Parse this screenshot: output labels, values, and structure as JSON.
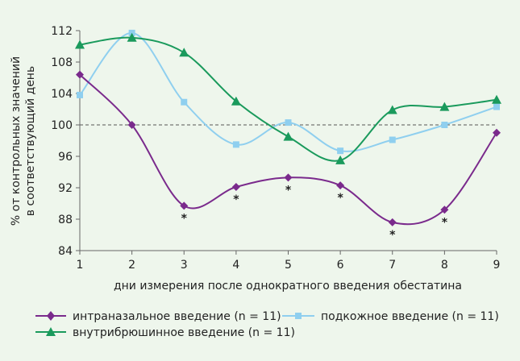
{
  "chart_data": {
    "type": "line",
    "xlabel": "дни измерения после однократного введения обестатина",
    "ylabel_line1": "% от контрольных значений",
    "ylabel_line2": "в соответствующий день",
    "x": [
      1,
      2,
      3,
      4,
      5,
      6,
      7,
      8,
      9
    ],
    "xlim": [
      1,
      9
    ],
    "ylim": [
      84,
      112
    ],
    "yticks": [
      84,
      88,
      92,
      96,
      100,
      104,
      108,
      112
    ],
    "reference_line": 100,
    "significance_marker": "*",
    "series": [
      {
        "name": "интраназальное введение (n = 11)",
        "color": "#7a2a8c",
        "marker": "diamond",
        "values": [
          106.4,
          100.0,
          89.7,
          92.1,
          93.3,
          92.3,
          87.6,
          89.2,
          99.0
        ],
        "significant": [
          false,
          false,
          true,
          true,
          true,
          true,
          true,
          true,
          false
        ]
      },
      {
        "name": "подкожное введение (n = 11)",
        "color": "#8fcfef",
        "marker": "square",
        "values": [
          103.8,
          111.7,
          102.9,
          97.5,
          100.3,
          96.7,
          98.1,
          100.0,
          102.3
        ],
        "significant": [
          false,
          false,
          false,
          false,
          false,
          false,
          false,
          false,
          false
        ]
      },
      {
        "name": "внутрибрюшинное введение (n = 11)",
        "color": "#1a9a5c",
        "marker": "triangle",
        "values": [
          110.2,
          111.1,
          109.2,
          103.0,
          98.5,
          95.5,
          101.9,
          102.3,
          103.2
        ],
        "significant": [
          false,
          false,
          false,
          false,
          false,
          false,
          false,
          false,
          false
        ]
      }
    ],
    "legend_position": "bottom"
  }
}
